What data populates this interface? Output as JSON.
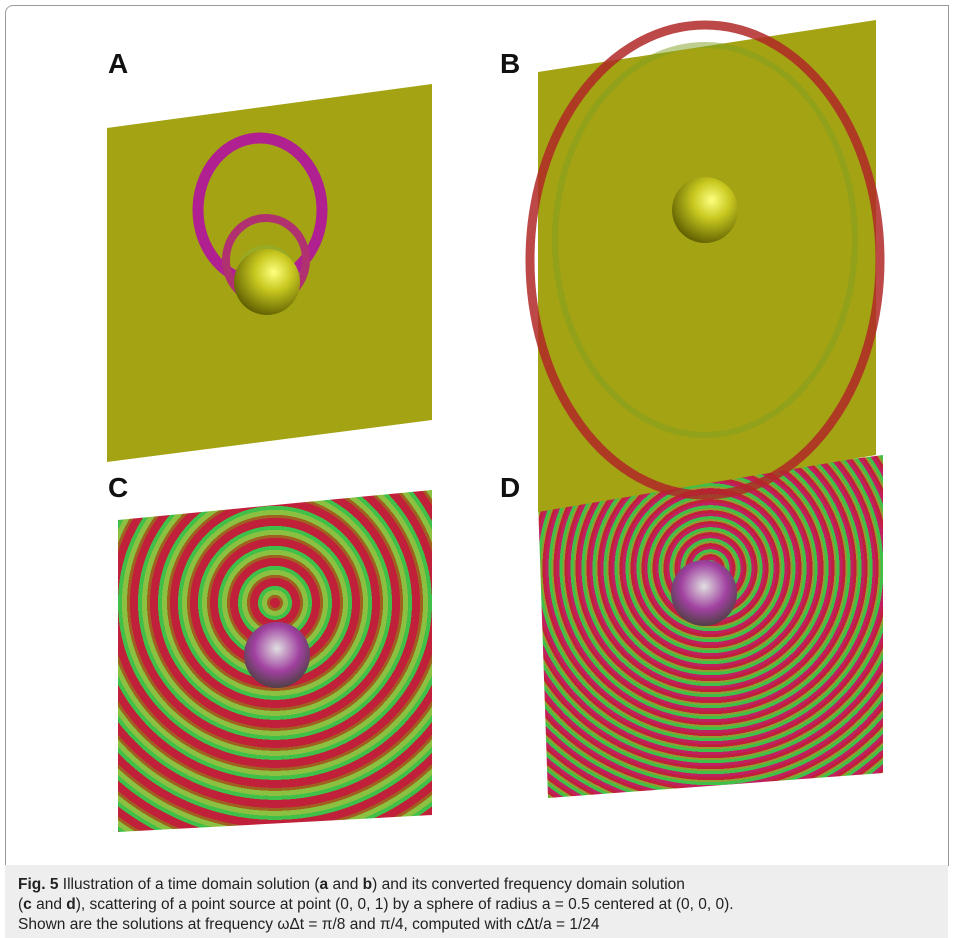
{
  "panels": [
    {
      "label": "A"
    },
    {
      "label": "B"
    },
    {
      "label": "C"
    },
    {
      "label": "D"
    }
  ],
  "caption": {
    "lines": [
      [
        "Fig. 5",
        " Illustration of a time domain solution (",
        "a",
        " and ",
        "b",
        ") and its converted frequency domain solution"
      ],
      [
        "(",
        "c",
        " and ",
        "d",
        "), scattering of a point source at point (0, 0, 1) by a sphere of radius a = 0.5 centered at (0, 0, 0)."
      ],
      [
        "Shown are the solutions at frequency ωΔt = π/8 and π/4, computed with cΔt/a = 1/24"
      ]
    ]
  }
}
